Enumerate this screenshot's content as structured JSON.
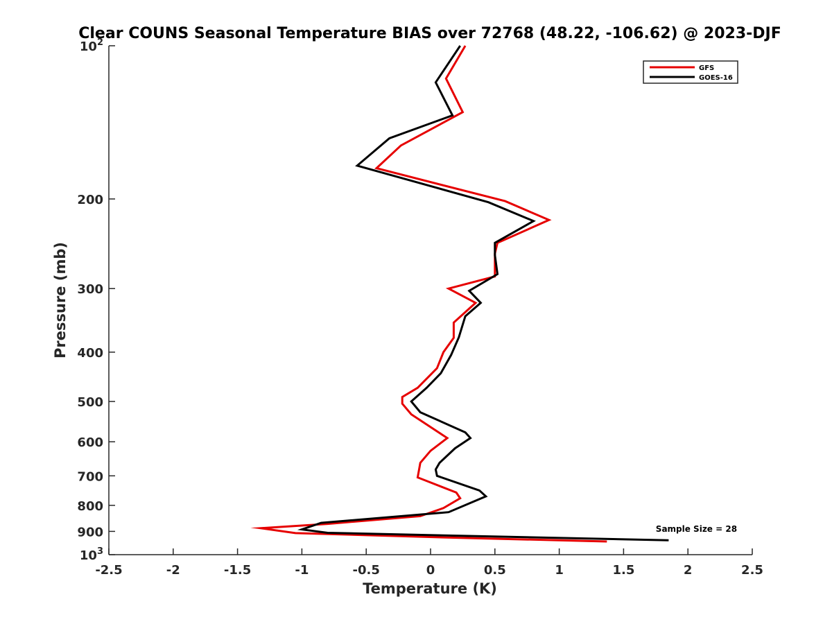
{
  "chart_data": {
    "type": "line",
    "title": "Clear COUNS Seasonal Temperature BIAS over 72768 (48.22, -106.62) @ 2023-DJF",
    "xlabel": "Temperature (K)",
    "ylabel": "Pressure (mb)",
    "xlim": [
      -2.5,
      2.5
    ],
    "ylim": [
      100,
      1000
    ],
    "y_scale": "log",
    "y_reversed": true,
    "grid": false,
    "legend_position": "top-right",
    "x_ticks": [
      {
        "value": -2.5,
        "label": "-2.5"
      },
      {
        "value": -2,
        "label": "-2"
      },
      {
        "value": -1.5,
        "label": "-1.5"
      },
      {
        "value": -1,
        "label": "-1"
      },
      {
        "value": -0.5,
        "label": "-0.5"
      },
      {
        "value": 0,
        "label": "0"
      },
      {
        "value": 0.5,
        "label": "0.5"
      },
      {
        "value": 1,
        "label": "1"
      },
      {
        "value": 1.5,
        "label": "1.5"
      },
      {
        "value": 2,
        "label": "2"
      },
      {
        "value": 2.5,
        "label": "2.5"
      }
    ],
    "y_ticks": [
      {
        "value": 100,
        "label": "10",
        "exponent": "2"
      },
      {
        "value": 200,
        "label": "200"
      },
      {
        "value": 300,
        "label": "300"
      },
      {
        "value": 400,
        "label": "400"
      },
      {
        "value": 500,
        "label": "500"
      },
      {
        "value": 600,
        "label": "600"
      },
      {
        "value": 700,
        "label": "700"
      },
      {
        "value": 800,
        "label": "800"
      },
      {
        "value": 900,
        "label": "900"
      },
      {
        "value": 1000,
        "label": "10",
        "exponent": "3"
      }
    ],
    "series": [
      {
        "name": "GFS",
        "color": "#e60000",
        "points": [
          {
            "x": 0.27,
            "p": 100
          },
          {
            "x": 0.12,
            "p": 116
          },
          {
            "x": 0.25,
            "p": 135
          },
          {
            "x": -0.23,
            "p": 157
          },
          {
            "x": -0.42,
            "p": 174
          },
          {
            "x": 0.58,
            "p": 202
          },
          {
            "x": 0.92,
            "p": 220
          },
          {
            "x": 0.52,
            "p": 244
          },
          {
            "x": 0.5,
            "p": 256
          },
          {
            "x": 0.5,
            "p": 284
          },
          {
            "x": 0.14,
            "p": 300
          },
          {
            "x": 0.35,
            "p": 320
          },
          {
            "x": 0.18,
            "p": 350
          },
          {
            "x": 0.18,
            "p": 375
          },
          {
            "x": 0.1,
            "p": 400
          },
          {
            "x": 0.05,
            "p": 430
          },
          {
            "x": -0.1,
            "p": 470
          },
          {
            "x": -0.22,
            "p": 490
          },
          {
            "x": -0.22,
            "p": 505
          },
          {
            "x": -0.15,
            "p": 530
          },
          {
            "x": 0.13,
            "p": 590
          },
          {
            "x": 0.0,
            "p": 625
          },
          {
            "x": -0.08,
            "p": 660
          },
          {
            "x": -0.1,
            "p": 705
          },
          {
            "x": 0.2,
            "p": 755
          },
          {
            "x": 0.23,
            "p": 775
          },
          {
            "x": 0.1,
            "p": 810
          },
          {
            "x": -0.08,
            "p": 840
          },
          {
            "x": -0.8,
            "p": 870
          },
          {
            "x": -1.32,
            "p": 887
          },
          {
            "x": -1.05,
            "p": 907
          },
          {
            "x": 0.1,
            "p": 925
          },
          {
            "x": 1.37,
            "p": 942
          }
        ]
      },
      {
        "name": "GOES-16",
        "color": "#000000",
        "points": [
          {
            "x": 0.23,
            "p": 100
          },
          {
            "x": 0.04,
            "p": 118
          },
          {
            "x": 0.17,
            "p": 137
          },
          {
            "x": -0.32,
            "p": 152
          },
          {
            "x": -0.57,
            "p": 172
          },
          {
            "x": 0.45,
            "p": 203
          },
          {
            "x": 0.8,
            "p": 221
          },
          {
            "x": 0.5,
            "p": 244
          },
          {
            "x": 0.5,
            "p": 258
          },
          {
            "x": 0.52,
            "p": 281
          },
          {
            "x": 0.3,
            "p": 303
          },
          {
            "x": 0.39,
            "p": 320
          },
          {
            "x": 0.27,
            "p": 340
          },
          {
            "x": 0.22,
            "p": 374
          },
          {
            "x": 0.16,
            "p": 405
          },
          {
            "x": 0.08,
            "p": 440
          },
          {
            "x": -0.03,
            "p": 470
          },
          {
            "x": -0.15,
            "p": 500
          },
          {
            "x": -0.08,
            "p": 525
          },
          {
            "x": 0.27,
            "p": 575
          },
          {
            "x": 0.31,
            "p": 590
          },
          {
            "x": 0.19,
            "p": 618
          },
          {
            "x": 0.07,
            "p": 660
          },
          {
            "x": 0.04,
            "p": 680
          },
          {
            "x": 0.05,
            "p": 700
          },
          {
            "x": 0.38,
            "p": 748
          },
          {
            "x": 0.43,
            "p": 768
          },
          {
            "x": 0.14,
            "p": 825
          },
          {
            "x": -0.85,
            "p": 866
          },
          {
            "x": -1.0,
            "p": 892
          },
          {
            "x": -0.8,
            "p": 906
          },
          {
            "x": 1.85,
            "p": 937
          }
        ]
      }
    ],
    "annotations": [
      {
        "text": "Sample Size = 28",
        "x": 1.75,
        "p": 902
      }
    ]
  }
}
